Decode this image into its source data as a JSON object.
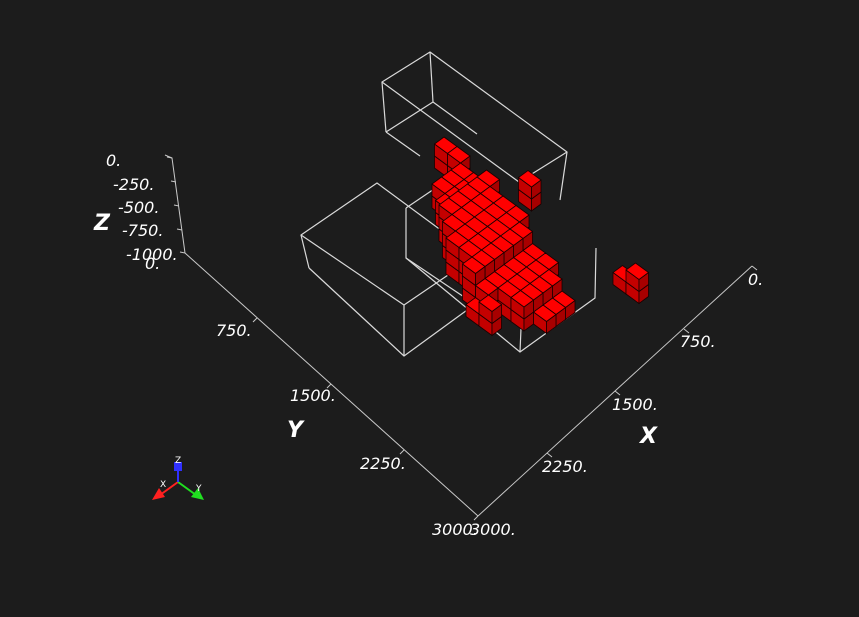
{
  "scene": {
    "background": "#1c1c1c",
    "axis_color": "#c8c8c8",
    "outline_color": "#d9d9d9",
    "voxel_color": "#ff0000",
    "voxel_edge_color": "#1a0000"
  },
  "axes": {
    "z": {
      "title": "Z",
      "ticks": [
        "0.",
        "-250.",
        "-500.",
        "-750.",
        "-1000."
      ]
    },
    "y": {
      "title": "Y",
      "ticks": [
        "0.",
        "750.",
        "1500.",
        "2250.",
        "3000."
      ]
    },
    "x": {
      "title": "X",
      "ticks": [
        "0.",
        "750.",
        "1500.",
        "2250.",
        "3000."
      ]
    }
  },
  "orientation_triad": {
    "x_label": "X",
    "y_label": "Y",
    "z_label": "Z"
  }
}
